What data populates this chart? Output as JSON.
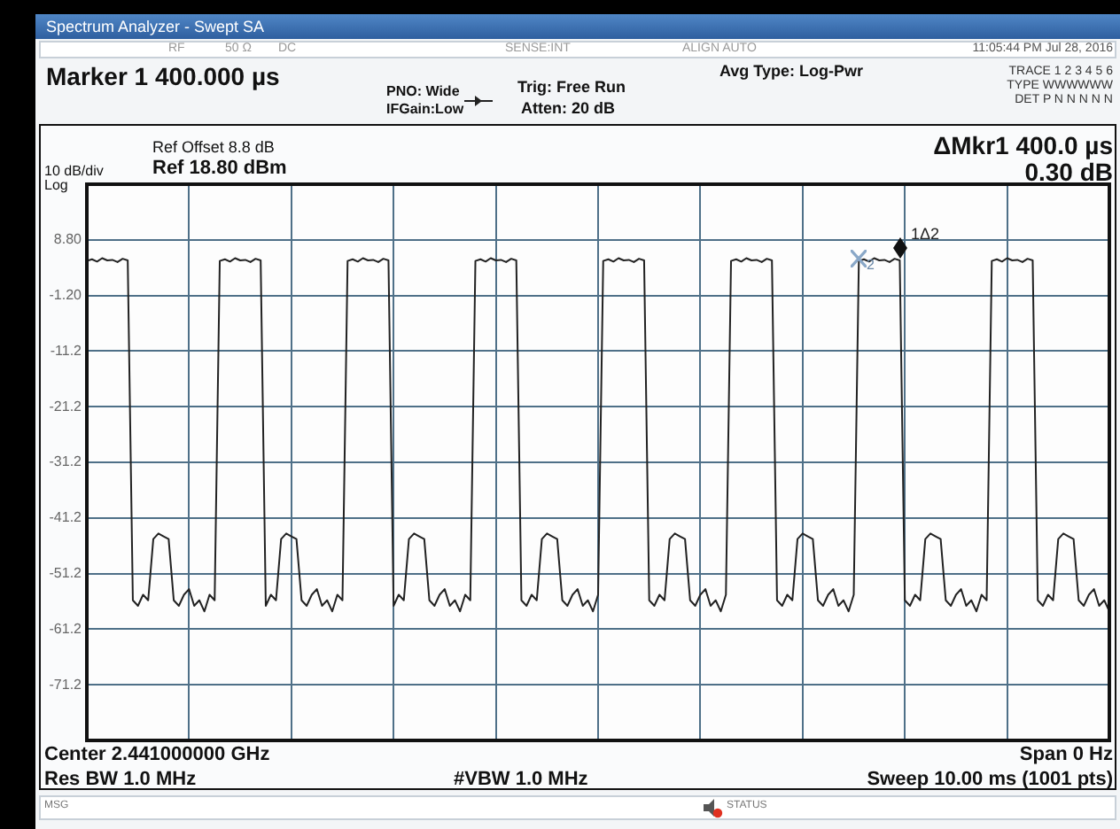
{
  "chart_data": {
    "type": "line",
    "title": "Spectrum Analyzer - Swept SA",
    "categories": [
      null,
      null,
      null,
      null,
      null,
      null,
      null,
      null,
      null,
      null,
      null,
      null,
      null,
      null,
      null,
      null,
      null,
      null,
      null,
      null,
      null,
      null,
      null,
      null,
      null,
      null,
      null,
      null,
      null,
      null,
      null,
      null,
      null,
      null,
      null,
      null,
      null,
      null,
      null,
      null,
      null,
      null,
      null,
      null,
      null,
      null,
      null,
      null,
      null,
      null,
      null,
      null,
      null,
      null,
      null,
      null,
      null,
      null,
      null,
      null,
      null,
      null,
      null,
      null,
      null,
      null,
      null,
      null,
      null,
      null,
      null,
      null,
      null,
      null,
      null,
      null,
      null,
      null,
      null,
      null,
      null,
      null,
      null,
      null,
      null,
      null,
      null,
      null,
      null,
      null,
      null,
      null,
      null,
      null,
      null,
      null,
      null,
      null,
      null,
      null,
      null,
      null,
      null,
      null,
      null,
      null,
      null,
      null,
      null,
      null,
      null,
      null,
      null,
      null,
      null,
      null,
      null,
      null,
      null,
      null,
      null,
      null,
      null,
      null,
      null,
      null,
      null,
      null,
      null,
      null,
      null,
      null,
      null,
      null,
      null,
      null,
      null,
      null,
      null,
      null,
      null,
      null,
      null,
      null,
      null,
      null,
      null,
      null,
      null,
      null,
      null,
      null,
      null,
      null,
      null,
      null,
      null,
      null,
      null,
      null,
      null,
      null,
      null,
      null,
      null,
      null,
      null,
      null,
      null,
      null,
      null,
      null,
      null,
      null,
      null,
      null,
      null,
      null,
      null,
      null,
      null,
      null,
      null,
      null,
      null,
      null,
      null,
      null,
      null,
      null,
      null,
      null,
      null,
      null,
      null,
      null,
      null,
      null,
      null,
      null,
      null
    ],
    "ylim": [
      -81.2,
      18.8
    ],
    "yticks": [
      {
        "value": 18.8,
        "label": null
      },
      {
        "value": 8.8,
        "label": "8.80"
      },
      {
        "value": -1.2,
        "label": "-1.20"
      },
      -11.2,
      -21.2,
      -31.2,
      -41.2,
      -51.2,
      -61.2,
      -71.2,
      {
        "value": -81.2,
        "label": null
      }
    ],
    "grid": true,
    "legend": false,
    "tick_labels": "y",
    "marker": "none",
    "series": [
      {
        "color": "#222222",
        "values": [
          5,
          5.3,
          4.9,
          5.5,
          5.1,
          5.2,
          4.8,
          5.4,
          5.1,
          -56,
          -57,
          -55,
          -56,
          -45,
          -44,
          -44.5,
          -45,
          -56,
          -57,
          -55,
          -54,
          -57,
          -56,
          -58,
          -55,
          -56,
          5,
          5.3,
          4.9,
          5.5,
          5.1,
          5.2,
          4.8,
          5.4,
          5.1,
          -57,
          -55,
          -56,
          -45,
          -44,
          -44.5,
          -45,
          -56,
          -57,
          -55,
          -54,
          -57,
          -56,
          -58,
          -55,
          -56,
          5,
          5.3,
          4.9,
          5.5,
          5.1,
          5.2,
          4.8,
          5.4,
          5.1,
          -57,
          -55,
          -56,
          -45,
          -44,
          -44.5,
          -45,
          -56,
          -57,
          -55,
          -54,
          -57,
          -56,
          -58,
          -55,
          -56,
          5,
          5.3,
          4.9,
          5.5,
          5.1,
          5.2,
          4.8,
          5.4,
          5.1,
          -56,
          -57,
          -55,
          -56,
          -45,
          -44,
          -44.5,
          -45,
          -56,
          -57,
          -55,
          -54,
          -57,
          -56,
          -58,
          -55,
          5,
          5.3,
          4.9,
          5.5,
          5.1,
          5.2,
          4.8,
          5.4,
          5.1,
          -56,
          -57,
          -55,
          -56,
          -45,
          -44,
          -44.5,
          -45,
          -56,
          -57,
          -55,
          -54,
          -57,
          -56,
          -58,
          -55,
          5,
          5.3,
          4.9,
          5.5,
          5.1,
          5.2,
          4.8,
          5.4,
          5.1,
          -56,
          -57,
          -55,
          -56,
          -45,
          -44,
          -44.5,
          -45,
          -56,
          -57,
          -55,
          -54,
          -57,
          -56,
          -58,
          -55,
          5,
          5.3,
          4.9,
          5.5,
          5.1,
          5.2,
          4.8,
          5.4,
          5.1,
          -56,
          -57,
          -55,
          -56,
          -45,
          -44,
          -44.5,
          -45,
          -56,
          -57,
          -55,
          -54,
          -57,
          -56,
          -58,
          -55,
          -56,
          5,
          5.3,
          4.9,
          5.5,
          5.1,
          5.2,
          4.8,
          5.4,
          5.1,
          -56,
          -57,
          -55,
          -56,
          -45,
          -44,
          -44.5,
          -45,
          -56,
          -57,
          -55,
          -54,
          -57,
          -56,
          -58
        ]
      }
    ],
    "annotations": [
      "RF",
      "50 Ω",
      "DC",
      "SENSE:INT",
      "ALIGN AUTO",
      "11:05:44 PM Jul 28, 2016",
      "Marker 1 400.000 µs",
      "PNO: Wide",
      "IFGain:Low",
      "Trig: Free Run",
      "Atten: 20 dB",
      "Avg Type: Log-Pwr",
      "TRACE 1 2 3 4 5 6",
      "TYPE WWWWWW",
      "DET P N N N N N",
      "Ref Offset 8.8 dB",
      "Ref 18.80 dBm",
      "10 dB/div",
      "Log",
      "ΔMkr1 400.0 µs",
      "0.30 dB",
      "Center 2.441000000 GHz",
      "Span 0 Hz",
      "Res BW 1.0 MHz",
      "#VBW 1.0 MHz",
      "Sweep  10.00 ms (1001 pts)",
      "MSG",
      "STATUS",
      "1Δ2",
      "2"
    ]
  }
}
